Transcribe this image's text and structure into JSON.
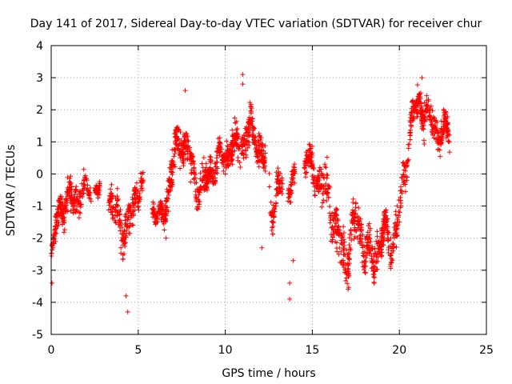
{
  "chart_data": {
    "type": "scatter",
    "title": "Day 141 of 2017, Sidereal Day-to-day VTEC variation (SDTVAR) for receiver chur",
    "xlabel": "GPS time / hours",
    "ylabel": "SDTVAR / TECUs",
    "xlim": [
      0,
      25
    ],
    "ylim": [
      -5,
      4
    ],
    "xticks": [
      "0",
      "5",
      "10",
      "15",
      "20",
      "25"
    ],
    "yticks": [
      "-5",
      "-4",
      "-3",
      "-2",
      "-1",
      "0",
      "1",
      "2",
      "3",
      "4"
    ],
    "grid": true,
    "marker": "+",
    "series": [
      {
        "name": "SDTVAR",
        "color": "#ff0000",
        "profile_x": [
          0.0,
          0.15,
          0.3,
          0.5,
          0.8,
          1.2,
          1.6,
          2.1,
          2.6,
          3.1,
          3.5,
          3.8,
          4.1,
          4.4,
          4.8,
          5.1,
          5.6,
          6.3,
          6.7,
          7.1,
          7.5,
          7.9,
          8.3,
          8.7,
          9.1,
          9.5,
          9.9,
          10.3,
          10.7,
          11.1,
          11.5,
          11.9,
          12.3,
          12.7,
          13.1,
          13.5,
          13.9,
          14.5,
          15.0,
          15.5,
          16.0,
          16.4,
          16.8,
          17.2,
          17.6,
          18.0,
          18.4,
          18.8,
          19.2,
          19.6,
          20.0,
          20.4,
          20.8,
          21.2,
          21.6,
          22.0,
          22.4,
          22.8
        ],
        "profile_y": [
          -2.6,
          -2.2,
          -1.5,
          -1.0,
          -0.9,
          -0.8,
          -0.7,
          -0.5,
          -0.5,
          -0.7,
          -1.0,
          -1.4,
          -1.6,
          -1.8,
          -0.8,
          -0.2,
          -0.8,
          -1.5,
          -0.6,
          0.6,
          1.2,
          0.4,
          -0.2,
          -0.5,
          0.1,
          0.3,
          0.5,
          0.8,
          0.9,
          1.0,
          1.3,
          1.0,
          0.2,
          -1.0,
          -0.6,
          -0.3,
          -0.4,
          0.5,
          0.2,
          -0.3,
          -0.8,
          -1.8,
          -2.6,
          -2.0,
          -1.4,
          -2.2,
          -2.8,
          -2.3,
          -1.8,
          -2.2,
          -1.3,
          0.6,
          1.8,
          2.2,
          1.7,
          1.5,
          1.2,
          1.4
        ],
        "spread": [
          0.5,
          0.6,
          0.7,
          0.7,
          0.8,
          0.8,
          0.8,
          0.5,
          0.3,
          0.5,
          0.8,
          0.9,
          1.0,
          1.0,
          0.8,
          0.7,
          0.4,
          0.6,
          0.9,
          1.0,
          0.9,
          0.9,
          0.8,
          0.8,
          0.8,
          0.8,
          0.7,
          0.7,
          0.9,
          0.9,
          0.9,
          0.9,
          1.0,
          1.0,
          0.8,
          0.6,
          0.7,
          0.6,
          0.8,
          1.0,
          1.2,
          1.3,
          1.3,
          1.2,
          1.1,
          1.0,
          1.0,
          0.9,
          0.8,
          0.8,
          0.9,
          0.9,
          0.8,
          0.8,
          0.8,
          0.8,
          0.7,
          0.7
        ],
        "gaps": [
          [
            2.3,
            2.5
          ],
          [
            2.8,
            3.3
          ],
          [
            5.3,
            5.8
          ],
          [
            12.3,
            12.5
          ],
          [
            13.3,
            13.6
          ],
          [
            14.0,
            14.5
          ]
        ],
        "x_range": [
          0.0,
          22.9
        ],
        "outliers": [
          [
            4.4,
            -4.3
          ],
          [
            4.3,
            -3.8
          ],
          [
            11.0,
            3.1
          ],
          [
            11.0,
            2.8
          ],
          [
            13.7,
            -3.9
          ],
          [
            13.7,
            -3.4
          ],
          [
            13.9,
            -2.7
          ],
          [
            0.05,
            -3.4
          ],
          [
            21.3,
            3.0
          ],
          [
            7.7,
            2.6
          ],
          [
            12.1,
            -2.3
          ],
          [
            6.6,
            -2.0
          ]
        ]
      }
    ]
  }
}
